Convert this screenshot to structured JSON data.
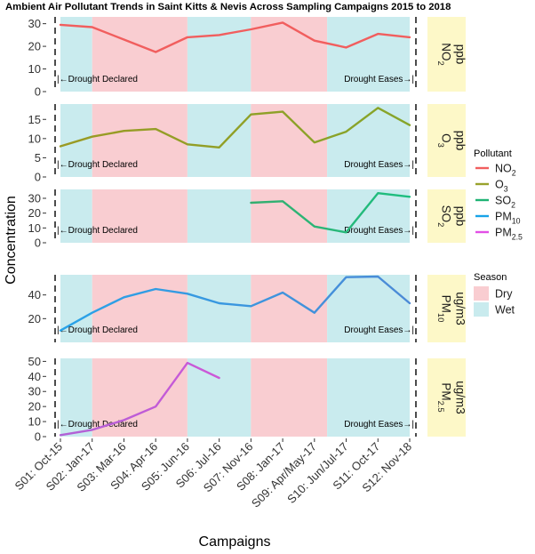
{
  "chart_data": {
    "type": "line",
    "title": "Ambient Air Pollutant Trends in Saint Kitts & Nevis Across Sampling Campaigns 2015 to 2018",
    "xlabel": "Campaigns",
    "ylabel": "Concentration",
    "categories": [
      "S01: Oct-15",
      "S02: Jan-17",
      "S03: Mar-16",
      "S04: Apr-16",
      "S05: Jun-16",
      "S06: Jul-16",
      "S07: Nov-16",
      "S08: Jan-17",
      "S09: Apr/May-17",
      "S10: Jun/Jul-17",
      "S11: Oct-17",
      "S12: Nov-18"
    ],
    "annotations": {
      "start": "Drought Declared",
      "end": "Drought Eases"
    },
    "season_legend": {
      "title": "Season",
      "entries": [
        {
          "name": "Dry",
          "color": "#f9cdd1"
        },
        {
          "name": "Wet",
          "color": "#c9ebee"
        }
      ]
    },
    "season_bands": [
      {
        "season": "Wet",
        "from": 0,
        "to": 1
      },
      {
        "season": "Dry",
        "from": 1,
        "to": 4
      },
      {
        "season": "Wet",
        "from": 4,
        "to": 6
      },
      {
        "season": "Dry",
        "from": 6,
        "to": 8.4
      },
      {
        "season": "Wet",
        "from": 8.4,
        "to": 11
      }
    ],
    "pollutant_legend": {
      "title": "Pollutant"
    },
    "series": [
      {
        "name": "NO2",
        "base": "NO",
        "sub": "2",
        "unit": "ppb",
        "color_start": "#f15e5e",
        "color_end": "#f15e5e",
        "ylim": [
          0,
          33
        ],
        "yticks": [
          0,
          10,
          20,
          30
        ],
        "values": [
          29.5,
          28.5,
          23,
          17.5,
          24,
          25,
          27.5,
          30.5,
          22.5,
          19.5,
          25.5,
          24
        ]
      },
      {
        "name": "O3",
        "base": "O",
        "sub": "3",
        "unit": "ppb",
        "color_start": "#9a9a24",
        "color_end": "#86a52a",
        "ylim": [
          0,
          19
        ],
        "yticks": [
          0,
          5,
          10,
          15
        ],
        "values": [
          8,
          10.5,
          12,
          12.5,
          8.5,
          7.7,
          16.3,
          17,
          9,
          11.8,
          18,
          13.5
        ]
      },
      {
        "name": "SO2",
        "base": "SO",
        "sub": "2",
        "unit": "ppb",
        "color_start": "#539a5c",
        "color_end": "#1cbf80",
        "ylim": [
          0,
          36
        ],
        "yticks": [
          0,
          10,
          20,
          30
        ],
        "values": [
          null,
          null,
          null,
          null,
          null,
          null,
          27,
          28,
          11,
          7,
          33.5,
          31
        ]
      },
      {
        "name": "PM10",
        "base": "PM",
        "sub": "10",
        "unit": "ug/m3",
        "color_start": "#29a3e8",
        "color_end": "#4c8ad6",
        "ylim": [
          0,
          57
        ],
        "yticks": [
          20,
          40
        ],
        "values": [
          10,
          25,
          38,
          45,
          41,
          33,
          30.5,
          42,
          25,
          55,
          55.5,
          33
        ]
      },
      {
        "name": "PM2.5",
        "base": "PM",
        "sub": "2.5",
        "unit": "ug/m3",
        "color_start": "#b061d6",
        "color_end": "#ef4cd9",
        "ylim": [
          0,
          52
        ],
        "yticks": [
          0,
          10,
          20,
          30,
          40,
          50
        ],
        "values": [
          1,
          4.5,
          11,
          20,
          49,
          39,
          null,
          null,
          null,
          null,
          null,
          null
        ]
      }
    ],
    "legend_series": [
      {
        "base": "NO",
        "sub": "2",
        "color": "#f15e5e"
      },
      {
        "base": "O",
        "sub": "3",
        "color": "#99a22c"
      },
      {
        "base": "SO",
        "sub": "2",
        "color": "#1fb374"
      },
      {
        "base": "PM",
        "sub": "10",
        "color": "#17a3e8"
      },
      {
        "base": "PM",
        "sub": "2.5",
        "color": "#e24fe6"
      }
    ],
    "strip_color": "#fdf8c8"
  }
}
